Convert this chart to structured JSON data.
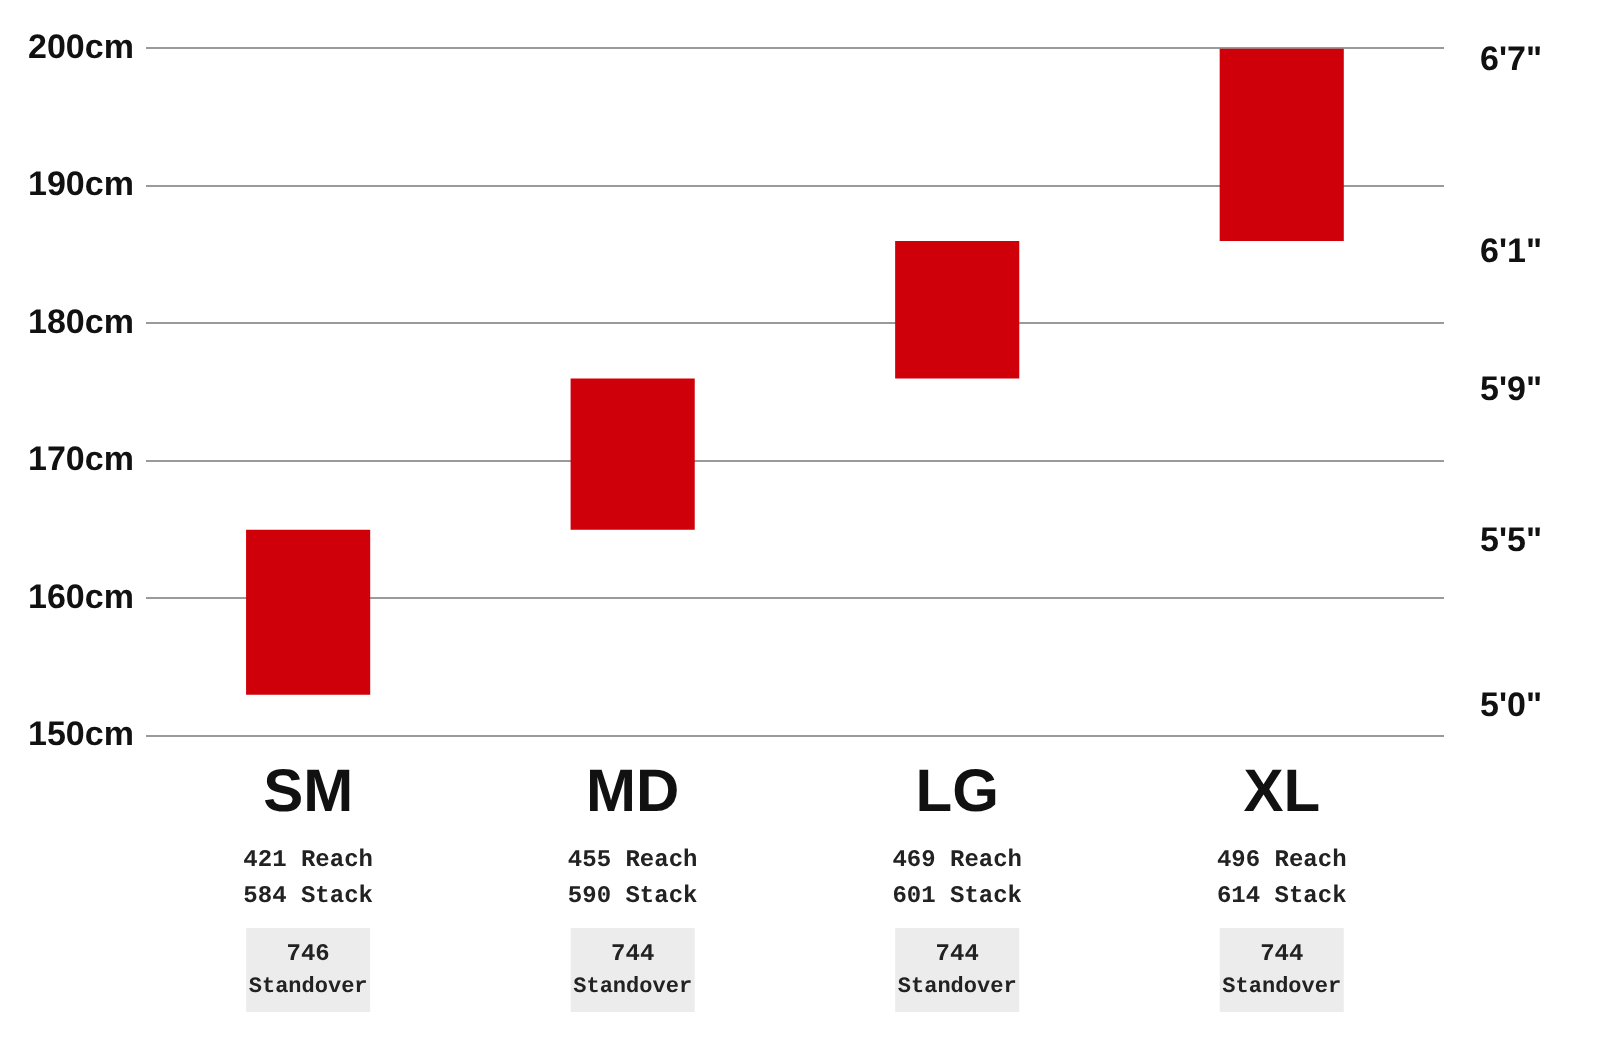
{
  "chart_data": {
    "type": "bar",
    "categories": [
      "SM",
      "MD",
      "LG",
      "XL"
    ],
    "values": [
      12,
      11,
      10,
      14
    ],
    "base": [
      153,
      165,
      176,
      186
    ],
    "color": "#d0000a",
    "ylim": [
      150,
      200
    ],
    "yticks": [
      {
        "value": 150,
        "label": "150cm"
      },
      {
        "value": 160,
        "label": "160cm"
      },
      {
        "value": 170,
        "label": "170cm"
      },
      {
        "value": 180,
        "label": "180cm"
      },
      {
        "value": 190,
        "label": "190cm"
      },
      {
        "value": 200,
        "label": "200cm"
      }
    ],
    "grid": "y",
    "legend": false,
    "annotations": [
      "5'0\"",
      "5'5\"",
      "5'9\"",
      "6'1\"",
      "6'7\"",
      "421 Reach",
      "584 Stack",
      "746",
      "Standover",
      "455 Reach",
      "590 Stack",
      "744",
      "Standover",
      "469 Reach",
      "601 Stack",
      "744",
      "Standover",
      "496 Reach",
      "614 Stack",
      "744",
      "Standover"
    ]
  }
}
